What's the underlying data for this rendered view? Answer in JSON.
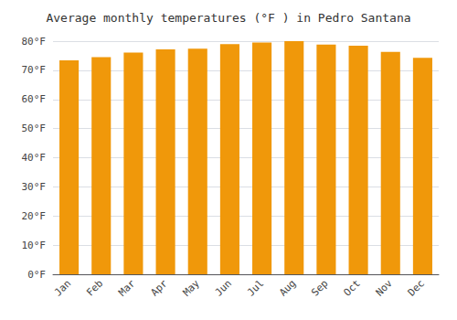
{
  "chart_data": {
    "type": "bar",
    "title": "Average monthly temperatures (°F ) in Pedro Santana",
    "categories": [
      "Jan",
      "Feb",
      "Mar",
      "Apr",
      "May",
      "Jun",
      "Jul",
      "Aug",
      "Sep",
      "Oct",
      "Nov",
      "Dec"
    ],
    "values": [
      73.4,
      74.5,
      76.1,
      77.2,
      77.4,
      79.0,
      79.5,
      80.0,
      78.8,
      78.4,
      76.3,
      74.3
    ],
    "color": "#F0980A",
    "ylim": [
      0,
      80
    ],
    "yticks": [
      {
        "value": 0,
        "label": "0°F"
      },
      {
        "value": 10,
        "label": "10°F"
      },
      {
        "value": 20,
        "label": "20°F"
      },
      {
        "value": 30,
        "label": "30°F"
      },
      {
        "value": 40,
        "label": "40°F"
      },
      {
        "value": 50,
        "label": "50°F"
      },
      {
        "value": 60,
        "label": "60°F"
      },
      {
        "value": 70,
        "label": "70°F"
      },
      {
        "value": 80,
        "label": "80°F"
      }
    ],
    "grid": true
  }
}
